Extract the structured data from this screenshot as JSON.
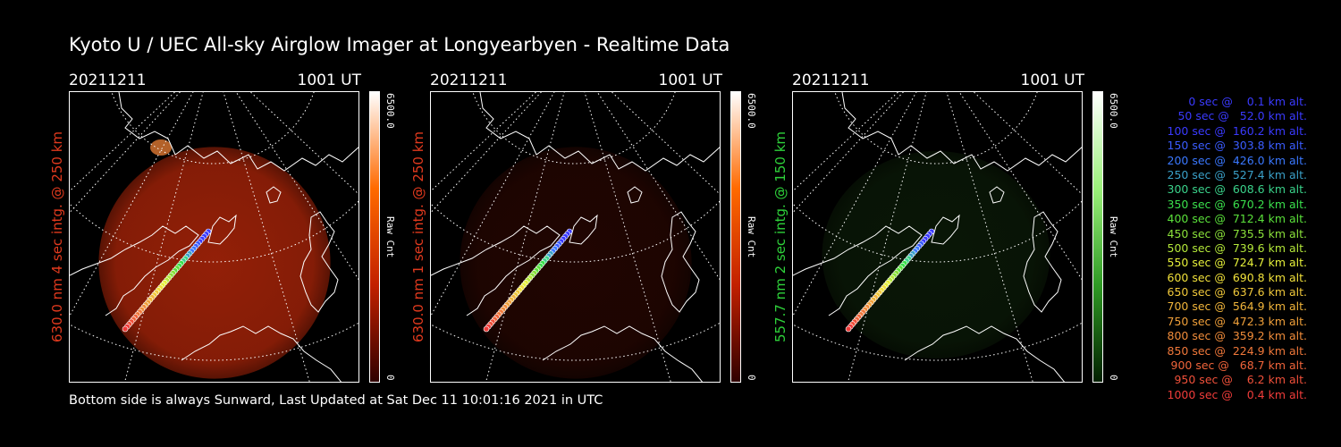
{
  "title": "Kyoto U / UEC All-sky Airglow Imager at Longyearbyen - Realtime Data",
  "footer": "Bottom side is always Sunward, Last Updated at Sat Dec 11 10:01:16 2021 in UTC",
  "panels": [
    {
      "date": "20211211",
      "time": "1001 UT",
      "ylabel": "630.0 nm 4 sec intg. @ 250 km",
      "label_color": "#e23a1e",
      "cbar_max": "6500.0",
      "cbar_unit": "Raw Cnt",
      "cbar_min": "0",
      "glow_color": "#c42a0a",
      "glow_level": 0.75,
      "cbar_colors": [
        "#ffffff",
        "#ff6a00",
        "#c22000",
        "#300000"
      ]
    },
    {
      "date": "20211211",
      "time": "1001 UT",
      "ylabel": "630.0 nm 1 sec intg. @ 250 km",
      "label_color": "#e23a1e",
      "cbar_max": "6500.0",
      "cbar_unit": "Raw Cnt",
      "cbar_min": "0",
      "glow_color": "#5c0f04",
      "glow_level": 0.35,
      "cbar_colors": [
        "#ffffff",
        "#ff6a00",
        "#c22000",
        "#300000"
      ]
    },
    {
      "date": "20211211",
      "time": "1001 UT",
      "ylabel": "557.7 nm 2 sec intg. @ 150 km",
      "label_color": "#2ed13a",
      "cbar_max": "6500.0",
      "cbar_unit": "Raw Cnt",
      "cbar_min": "0",
      "glow_color": "#1f4a15",
      "glow_level": 0.3,
      "cbar_colors": [
        "#ffffff",
        "#9bf07a",
        "#2f9a24",
        "#022000"
      ]
    }
  ],
  "legend": [
    {
      "text": "   0 sec @    0.1 km alt.",
      "color": "#3a3aff"
    },
    {
      "text": "  50 sec @   52.0 km alt.",
      "color": "#3a3aff"
    },
    {
      "text": " 100 sec @  160.2 km alt.",
      "color": "#3a3aff"
    },
    {
      "text": " 150 sec @  303.8 km alt.",
      "color": "#3a5cff"
    },
    {
      "text": " 200 sec @  426.0 km alt.",
      "color": "#3a78ff"
    },
    {
      "text": " 250 sec @  527.4 km alt.",
      "color": "#3aa0c8"
    },
    {
      "text": " 300 sec @  608.6 km alt.",
      "color": "#3ad28a"
    },
    {
      "text": " 350 sec @  670.2 km alt.",
      "color": "#3ae04c"
    },
    {
      "text": " 400 sec @  712.4 km alt.",
      "color": "#5ae03a"
    },
    {
      "text": " 450 sec @  735.5 km alt.",
      "color": "#8ae03a"
    },
    {
      "text": " 500 sec @  739.6 km alt.",
      "color": "#b4e83a"
    },
    {
      "text": " 550 sec @  724.7 km alt.",
      "color": "#e6f03a"
    },
    {
      "text": " 600 sec @  690.8 km alt.",
      "color": "#f0e03a"
    },
    {
      "text": " 650 sec @  637.6 km alt.",
      "color": "#f0c83a"
    },
    {
      "text": " 700 sec @  564.9 km alt.",
      "color": "#f0b43a"
    },
    {
      "text": " 750 sec @  472.3 km alt.",
      "color": "#f0a03a"
    },
    {
      "text": " 800 sec @  359.2 km alt.",
      "color": "#f08c3a"
    },
    {
      "text": " 850 sec @  224.9 km alt.",
      "color": "#f0783a"
    },
    {
      "text": " 900 sec @   68.7 km alt.",
      "color": "#f0643a"
    },
    {
      "text": " 950 sec @    6.2 km alt.",
      "color": "#f0503a"
    },
    {
      "text": "1000 sec @    0.4 km alt.",
      "color": "#f03c3a"
    }
  ]
}
